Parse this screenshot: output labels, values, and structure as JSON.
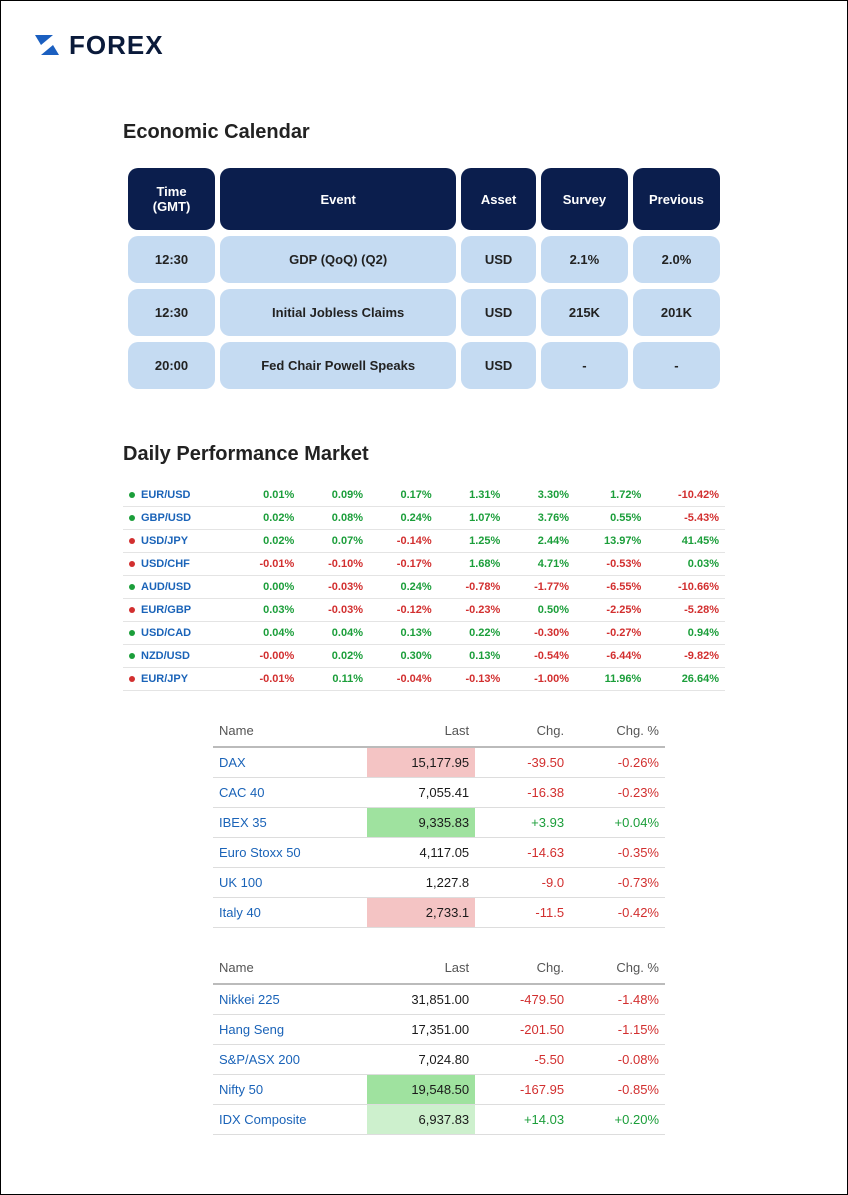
{
  "logo": {
    "text": "FOREX",
    "mark_color": "#1b5fc0",
    "mark_accent": "#0b1e4d"
  },
  "calendar": {
    "title": "Economic Calendar",
    "header_bg": "#0b1e4d",
    "row_bg": "#c5dbf2",
    "columns": [
      "Time (GMT)",
      "Event",
      "Asset",
      "Survey",
      "Previous"
    ],
    "rows": [
      {
        "time": "12:30",
        "event": "GDP (QoQ) (Q2)",
        "asset": "USD",
        "survey": "2.1%",
        "previous": "2.0%"
      },
      {
        "time": "12:30",
        "event": "Initial Jobless Claims",
        "asset": "USD",
        "survey": "215K",
        "previous": "201K"
      },
      {
        "time": "20:00",
        "event": "Fed Chair Powell Speaks",
        "asset": "USD",
        "survey": "-",
        "previous": "-"
      }
    ]
  },
  "perf": {
    "title": "Daily Performance Market",
    "pos_color": "#1b9e3a",
    "neg_color": "#d22f2f",
    "link_color": "#1a63b8",
    "rows": [
      {
        "dot": "up",
        "pair": "EUR/USD",
        "c": [
          "0.01%",
          "0.09%",
          "0.17%",
          "1.31%",
          "3.30%",
          "1.72%",
          "-10.42%"
        ]
      },
      {
        "dot": "up",
        "pair": "GBP/USD",
        "c": [
          "0.02%",
          "0.08%",
          "0.24%",
          "1.07%",
          "3.76%",
          "0.55%",
          "-5.43%"
        ]
      },
      {
        "dot": "down",
        "pair": "USD/JPY",
        "c": [
          "0.02%",
          "0.07%",
          "-0.14%",
          "1.25%",
          "2.44%",
          "13.97%",
          "41.45%"
        ]
      },
      {
        "dot": "down",
        "pair": "USD/CHF",
        "c": [
          "-0.01%",
          "-0.10%",
          "-0.17%",
          "1.68%",
          "4.71%",
          "-0.53%",
          "0.03%"
        ]
      },
      {
        "dot": "up",
        "pair": "AUD/USD",
        "c": [
          "0.00%",
          "-0.03%",
          "0.24%",
          "-0.78%",
          "-1.77%",
          "-6.55%",
          "-10.66%"
        ]
      },
      {
        "dot": "down",
        "pair": "EUR/GBP",
        "c": [
          "0.03%",
          "-0.03%",
          "-0.12%",
          "-0.23%",
          "0.50%",
          "-2.25%",
          "-5.28%"
        ]
      },
      {
        "dot": "up",
        "pair": "USD/CAD",
        "c": [
          "0.04%",
          "0.04%",
          "0.13%",
          "0.22%",
          "-0.30%",
          "-0.27%",
          "0.94%"
        ]
      },
      {
        "dot": "up",
        "pair": "NZD/USD",
        "c": [
          "-0.00%",
          "0.02%",
          "0.30%",
          "0.13%",
          "-0.54%",
          "-6.44%",
          "-9.82%"
        ]
      },
      {
        "dot": "down",
        "pair": "EUR/JPY",
        "c": [
          "-0.01%",
          "0.11%",
          "-0.04%",
          "-0.13%",
          "-1.00%",
          "11.96%",
          "26.64%"
        ]
      }
    ]
  },
  "indices_europe": {
    "columns": [
      "Name",
      "Last",
      "Chg.",
      "Chg. %"
    ],
    "rows": [
      {
        "name": "DAX",
        "last": "15,177.95",
        "chg": "-39.50",
        "pct": "-0.26%",
        "hl": "red"
      },
      {
        "name": "CAC 40",
        "last": "7,055.41",
        "chg": "-16.38",
        "pct": "-0.23%",
        "hl": ""
      },
      {
        "name": "IBEX 35",
        "last": "9,335.83",
        "chg": "+3.93",
        "pct": "+0.04%",
        "hl": "green"
      },
      {
        "name": "Euro Stoxx 50",
        "last": "4,117.05",
        "chg": "-14.63",
        "pct": "-0.35%",
        "hl": ""
      },
      {
        "name": "UK 100",
        "last": "1,227.8",
        "chg": "-9.0",
        "pct": "-0.73%",
        "hl": ""
      },
      {
        "name": "Italy 40",
        "last": "2,733.1",
        "chg": "-11.5",
        "pct": "-0.42%",
        "hl": "red"
      }
    ]
  },
  "indices_asia": {
    "columns": [
      "Name",
      "Last",
      "Chg.",
      "Chg. %"
    ],
    "rows": [
      {
        "name": "Nikkei 225",
        "last": "31,851.00",
        "chg": "-479.50",
        "pct": "-1.48%",
        "hl": ""
      },
      {
        "name": "Hang Seng",
        "last": "17,351.00",
        "chg": "-201.50",
        "pct": "-1.15%",
        "hl": ""
      },
      {
        "name": "S&P/ASX 200",
        "last": "7,024.80",
        "chg": "-5.50",
        "pct": "-0.08%",
        "hl": ""
      },
      {
        "name": "Nifty 50",
        "last": "19,548.50",
        "chg": "-167.95",
        "pct": "-0.85%",
        "hl": "green"
      },
      {
        "name": "IDX Composite",
        "last": "6,937.83",
        "chg": "+14.03",
        "pct": "+0.20%",
        "hl": "ltgrn"
      }
    ]
  }
}
